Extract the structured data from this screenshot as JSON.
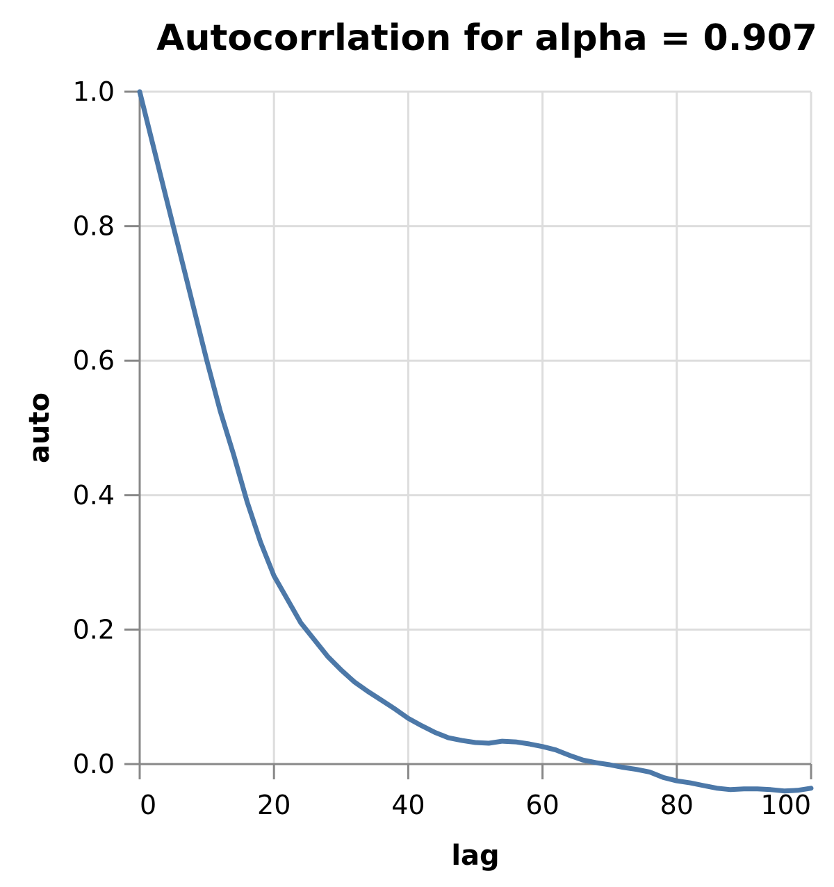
{
  "chart_data": {
    "type": "line",
    "title": "Autocorrlation for alpha = 0.907",
    "xlabel": "lag",
    "ylabel": "auto",
    "xlim": [
      0,
      100
    ],
    "ylim": [
      0,
      1.0
    ],
    "x_ticks": [
      "0",
      "20",
      "40",
      "60",
      "80",
      "100"
    ],
    "y_ticks": [
      "0.0",
      "0.2",
      "0.4",
      "0.6",
      "0.8",
      "1.0"
    ],
    "grid": true,
    "legend": "none",
    "series": [
      {
        "color": "#4c78a8",
        "x": [
          0,
          2,
          4,
          6,
          8,
          10,
          12,
          14,
          16,
          18,
          20,
          22,
          24,
          26,
          28,
          30,
          32,
          34,
          36,
          38,
          40,
          42,
          44,
          46,
          48,
          50,
          52,
          54,
          56,
          58,
          60,
          62,
          64,
          66,
          68,
          70,
          72,
          74,
          76,
          78,
          80,
          82,
          84,
          86,
          88,
          90,
          92,
          94,
          96,
          98,
          100
        ],
        "values": [
          1.0,
          0.92,
          0.84,
          0.76,
          0.68,
          0.6,
          0.525,
          0.46,
          0.39,
          0.33,
          0.28,
          0.245,
          0.21,
          0.185,
          0.16,
          0.14,
          0.122,
          0.108,
          0.095,
          0.082,
          0.068,
          0.057,
          0.047,
          0.039,
          0.035,
          0.032,
          0.031,
          0.034,
          0.033,
          0.03,
          0.026,
          0.021,
          0.013,
          0.006,
          0.002,
          -0.001,
          -0.005,
          -0.008,
          -0.012,
          -0.02,
          -0.025,
          -0.028,
          -0.032,
          -0.036,
          -0.038,
          -0.037,
          -0.037,
          -0.038,
          -0.04,
          -0.039,
          -0.036
        ]
      }
    ]
  }
}
